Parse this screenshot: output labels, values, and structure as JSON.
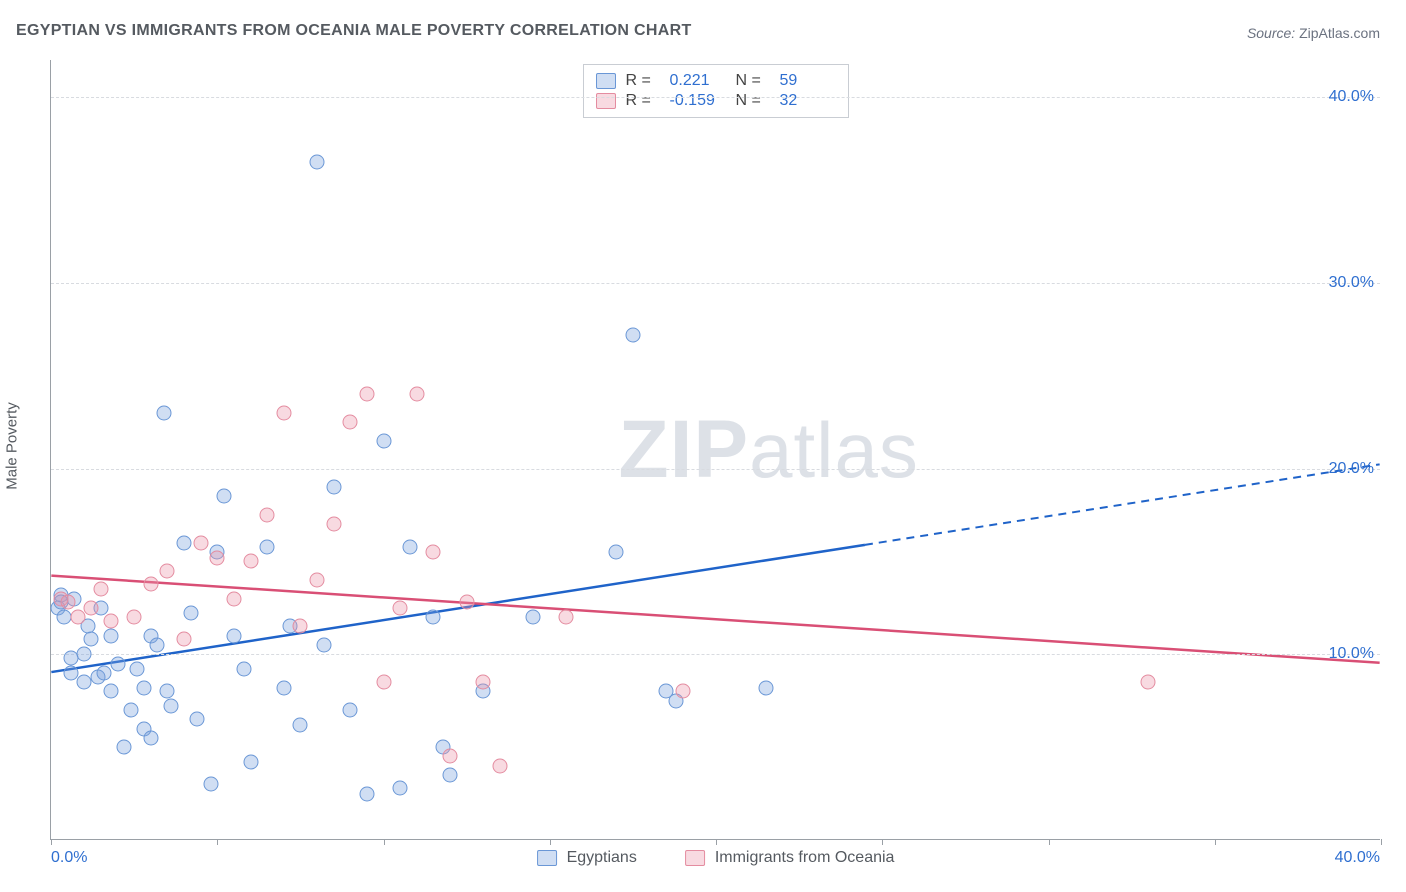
{
  "title": "EGYPTIAN VS IMMIGRANTS FROM OCEANIA MALE POVERTY CORRELATION CHART",
  "source_label": "Source:",
  "source_value": "ZipAtlas.com",
  "y_axis_title": "Male Poverty",
  "watermark_z": "ZIP",
  "watermark_rest": "atlas",
  "chart": {
    "type": "scatter",
    "xlim": [
      0,
      40
    ],
    "ylim": [
      0,
      42
    ],
    "y_grid_values": [
      10,
      20,
      30,
      40
    ],
    "y_tick_labels": [
      "10.0%",
      "20.0%",
      "30.0%",
      "40.0%"
    ],
    "x_tick_values": [
      0,
      5,
      10,
      15,
      20,
      25,
      30,
      35,
      40
    ],
    "x_end_labels": [
      "0.0%",
      "40.0%"
    ],
    "background_color": "#ffffff",
    "grid_color": "#d8dbe0",
    "axis_color": "#9aa0a6",
    "point_radius": 7.5,
    "series": [
      {
        "key": "egyptians",
        "label": "Egyptians",
        "fill": "rgba(120,160,220,0.35)",
        "stroke": "#6a97d6",
        "line_color": "#1f63c9",
        "r_value": "0.221",
        "n_value": "59",
        "trend": {
          "x1": 0,
          "y1": 9.0,
          "x_solid_end": 24.5,
          "x2": 40,
          "y2": 20.2
        },
        "points": [
          [
            0.2,
            12.5
          ],
          [
            0.3,
            13.2
          ],
          [
            0.3,
            12.8
          ],
          [
            0.4,
            12.0
          ],
          [
            0.6,
            9.0
          ],
          [
            0.6,
            9.8
          ],
          [
            0.7,
            13.0
          ],
          [
            1.0,
            8.5
          ],
          [
            1.0,
            10.0
          ],
          [
            1.1,
            11.5
          ],
          [
            1.2,
            10.8
          ],
          [
            1.4,
            8.8
          ],
          [
            1.5,
            12.5
          ],
          [
            1.6,
            9.0
          ],
          [
            1.8,
            11.0
          ],
          [
            1.8,
            8.0
          ],
          [
            2.0,
            9.5
          ],
          [
            2.2,
            5.0
          ],
          [
            2.4,
            7.0
          ],
          [
            2.6,
            9.2
          ],
          [
            2.8,
            6.0
          ],
          [
            2.8,
            8.2
          ],
          [
            3.0,
            11.0
          ],
          [
            3.0,
            5.5
          ],
          [
            3.2,
            10.5
          ],
          [
            3.4,
            23.0
          ],
          [
            3.5,
            8.0
          ],
          [
            3.6,
            7.2
          ],
          [
            4.0,
            16.0
          ],
          [
            4.2,
            12.2
          ],
          [
            4.4,
            6.5
          ],
          [
            4.8,
            3.0
          ],
          [
            5.0,
            15.5
          ],
          [
            5.2,
            18.5
          ],
          [
            5.5,
            11.0
          ],
          [
            5.8,
            9.2
          ],
          [
            6.0,
            4.2
          ],
          [
            6.5,
            15.8
          ],
          [
            7.0,
            8.2
          ],
          [
            7.2,
            11.5
          ],
          [
            7.5,
            6.2
          ],
          [
            8.0,
            36.5
          ],
          [
            8.2,
            10.5
          ],
          [
            8.5,
            19.0
          ],
          [
            9.0,
            7.0
          ],
          [
            9.5,
            2.5
          ],
          [
            10.0,
            21.5
          ],
          [
            10.5,
            2.8
          ],
          [
            10.8,
            15.8
          ],
          [
            11.5,
            12.0
          ],
          [
            11.8,
            5.0
          ],
          [
            12.0,
            3.5
          ],
          [
            13.0,
            8.0
          ],
          [
            14.5,
            12.0
          ],
          [
            17.0,
            15.5
          ],
          [
            17.5,
            27.2
          ],
          [
            18.5,
            8.0
          ],
          [
            18.8,
            7.5
          ],
          [
            21.5,
            8.2
          ]
        ]
      },
      {
        "key": "oceania",
        "label": "Immigrants from Oceania",
        "fill": "rgba(235,150,170,0.35)",
        "stroke": "#e48ca0",
        "line_color": "#d94f75",
        "r_value": "-0.159",
        "n_value": "32",
        "trend": {
          "x1": 0,
          "y1": 14.2,
          "x_solid_end": 40,
          "x2": 40,
          "y2": 9.5
        },
        "points": [
          [
            0.3,
            13.0
          ],
          [
            0.5,
            12.8
          ],
          [
            0.8,
            12.0
          ],
          [
            1.2,
            12.5
          ],
          [
            1.5,
            13.5
          ],
          [
            1.8,
            11.8
          ],
          [
            2.5,
            12.0
          ],
          [
            3.0,
            13.8
          ],
          [
            3.5,
            14.5
          ],
          [
            4.0,
            10.8
          ],
          [
            4.5,
            16.0
          ],
          [
            5.0,
            15.2
          ],
          [
            5.5,
            13.0
          ],
          [
            6.0,
            15.0
          ],
          [
            6.5,
            17.5
          ],
          [
            7.0,
            23.0
          ],
          [
            7.5,
            11.5
          ],
          [
            8.0,
            14.0
          ],
          [
            8.5,
            17.0
          ],
          [
            9.0,
            22.5
          ],
          [
            9.5,
            24.0
          ],
          [
            10.0,
            8.5
          ],
          [
            10.5,
            12.5
          ],
          [
            11.0,
            24.0
          ],
          [
            11.5,
            15.5
          ],
          [
            12.0,
            4.5
          ],
          [
            12.5,
            12.8
          ],
          [
            13.0,
            8.5
          ],
          [
            13.5,
            4.0
          ],
          [
            15.5,
            12.0
          ],
          [
            19.0,
            8.0
          ],
          [
            33.0,
            8.5
          ]
        ]
      }
    ]
  },
  "legend_top": {
    "r_label": "R =",
    "n_label": "N ="
  }
}
